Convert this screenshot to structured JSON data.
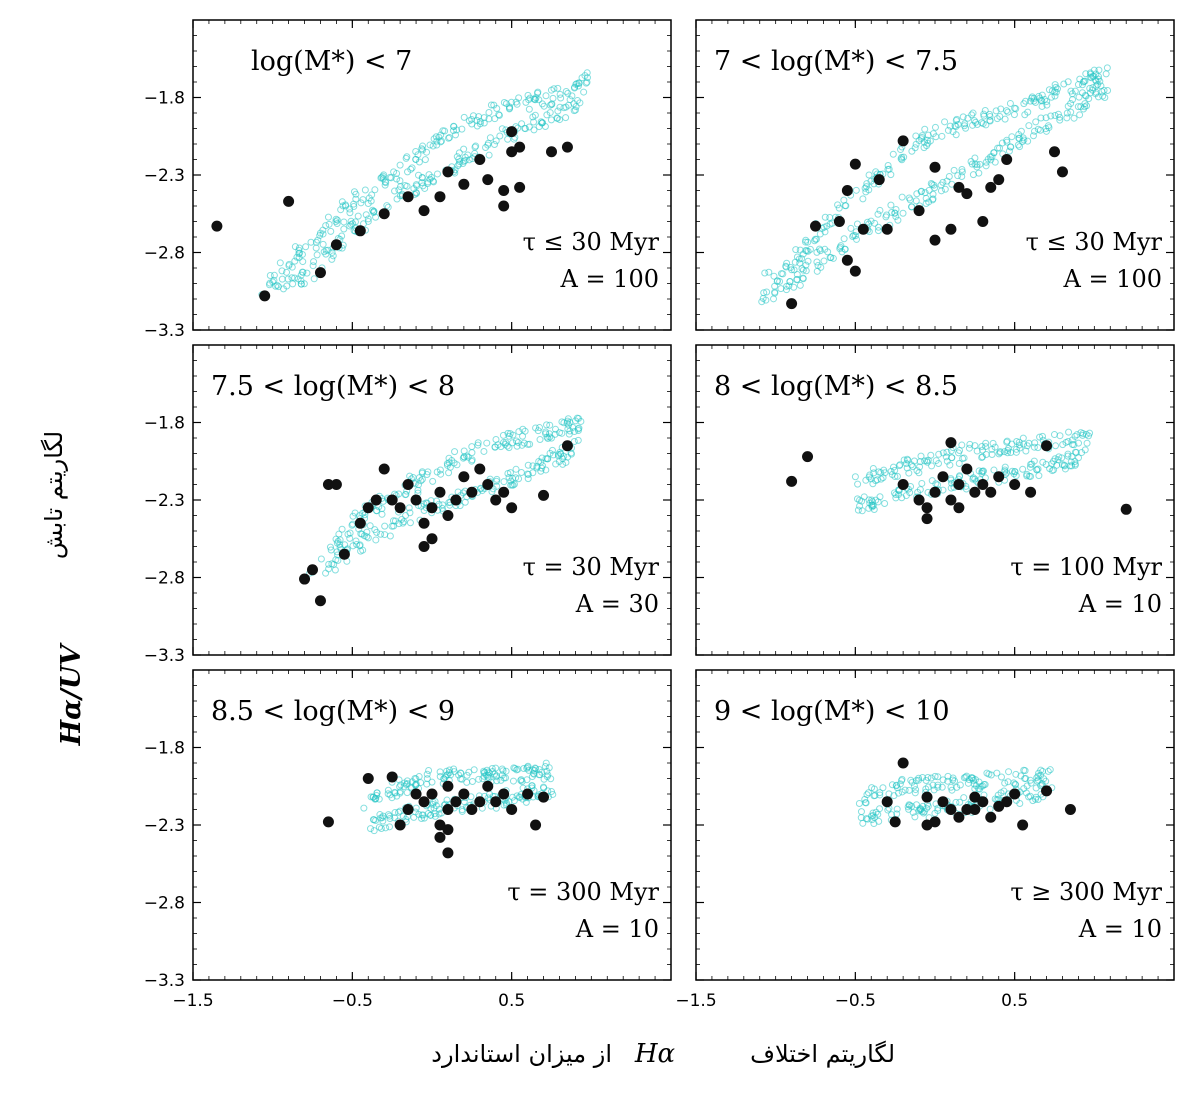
{
  "figure": {
    "xlabel": {
      "suffix": "لگاریتم اختلاف",
      "symbol": "Hα",
      "prefix": "از میزان استاندارد"
    },
    "ylabel": {
      "symbol": "Hα/UV",
      "text": "لگاریتم تابش"
    }
  },
  "chart_data": [
    {
      "type": "scatter",
      "title": "log(M*) < 7",
      "annotation": [
        "τ ≤ 30 Myr",
        "A = 100"
      ],
      "xlim": [
        -1.5,
        1.5
      ],
      "ylim": [
        -3.3,
        -1.3
      ],
      "xticks": [
        "−1.5",
        "−0.5",
        "0.5"
      ],
      "yticks": [
        "−1.8",
        "−2.3",
        "−2.8",
        "−3.3"
      ],
      "model_band": {
        "color": "#22c4c4",
        "tracks": [
          [
            [
              -1.05,
              -3.05
            ],
            [
              -0.8,
              -2.95
            ],
            [
              -0.55,
              -2.7
            ],
            [
              -0.3,
              -2.5
            ],
            [
              -0.05,
              -2.35
            ],
            [
              0.2,
              -2.2
            ],
            [
              0.45,
              -2.05
            ],
            [
              0.7,
              -1.95
            ],
            [
              0.95,
              -1.8
            ]
          ],
          [
            [
              -1.0,
              -2.95
            ],
            [
              -0.75,
              -2.75
            ],
            [
              -0.5,
              -2.5
            ],
            [
              -0.25,
              -2.3
            ],
            [
              0,
              -2.1
            ],
            [
              0.25,
              -1.95
            ],
            [
              0.5,
              -1.85
            ],
            [
              0.75,
              -1.8
            ],
            [
              1.0,
              -1.65
            ]
          ]
        ]
      },
      "points": [
        [
          -1.35,
          -2.63
        ],
        [
          -0.9,
          -2.47
        ],
        [
          -1.05,
          -3.08
        ],
        [
          -0.7,
          -2.93
        ],
        [
          -0.6,
          -2.75
        ],
        [
          -0.45,
          -2.66
        ],
        [
          -0.3,
          -2.55
        ],
        [
          -0.15,
          -2.44
        ],
        [
          -0.05,
          -2.53
        ],
        [
          0.05,
          -2.44
        ],
        [
          0.1,
          -2.28
        ],
        [
          0.2,
          -2.36
        ],
        [
          0.3,
          -2.2
        ],
        [
          0.35,
          -2.33
        ],
        [
          0.45,
          -2.4
        ],
        [
          0.5,
          -2.15
        ],
        [
          0.55,
          -2.12
        ],
        [
          0.5,
          -2.02
        ],
        [
          0.55,
          -2.38
        ],
        [
          0.45,
          -2.5
        ],
        [
          0.75,
          -2.15
        ],
        [
          0.85,
          -2.12
        ]
      ]
    },
    {
      "type": "scatter",
      "title": "7 < log(M*) < 7.5",
      "annotation": [
        "τ ≤ 30 Myr",
        "A = 100"
      ],
      "xlim": [
        -1.5,
        1.5
      ],
      "ylim": [
        -3.3,
        -1.3
      ],
      "xticks": [
        "−1.5",
        "−0.5",
        "0.5"
      ],
      "yticks": [],
      "model_band": {
        "color": "#22c4c4",
        "tracks": [
          [
            [
              -1.1,
              -3.1
            ],
            [
              -0.85,
              -2.95
            ],
            [
              -0.6,
              -2.75
            ],
            [
              -0.35,
              -2.6
            ],
            [
              -0.1,
              -2.45
            ],
            [
              0.15,
              -2.3
            ],
            [
              0.4,
              -2.15
            ],
            [
              0.65,
              -2.0
            ],
            [
              0.9,
              -1.85
            ],
            [
              1.05,
              -1.75
            ]
          ],
          [
            [
              -1.05,
              -3.0
            ],
            [
              -0.8,
              -2.75
            ],
            [
              -0.55,
              -2.5
            ],
            [
              -0.3,
              -2.25
            ],
            [
              -0.05,
              -2.05
            ],
            [
              0.2,
              -1.95
            ],
            [
              0.45,
              -1.9
            ],
            [
              0.7,
              -1.8
            ],
            [
              0.95,
              -1.7
            ],
            [
              1.05,
              -1.65
            ]
          ]
        ]
      },
      "points": [
        [
          -0.9,
          -3.13
        ],
        [
          -0.75,
          -2.63
        ],
        [
          -0.6,
          -2.6
        ],
        [
          -0.5,
          -2.92
        ],
        [
          -0.55,
          -2.85
        ],
        [
          -0.45,
          -2.65
        ],
        [
          -0.3,
          -2.65
        ],
        [
          -0.55,
          -2.4
        ],
        [
          -0.5,
          -2.23
        ],
        [
          -0.35,
          -2.33
        ],
        [
          -0.2,
          -2.08
        ],
        [
          -0.1,
          -2.53
        ],
        [
          0,
          -2.25
        ],
        [
          0,
          -2.72
        ],
        [
          0.1,
          -2.65
        ],
        [
          0.15,
          -2.38
        ],
        [
          0.2,
          -2.42
        ],
        [
          0.3,
          -2.6
        ],
        [
          0.35,
          -2.38
        ],
        [
          0.4,
          -2.33
        ],
        [
          0.45,
          -2.2
        ],
        [
          0.75,
          -2.15
        ],
        [
          0.8,
          -2.28
        ]
      ]
    },
    {
      "type": "scatter",
      "title": "7.5 < log(M*) < 8",
      "annotation": [
        "τ = 30 Myr",
        "A = 30"
      ],
      "xlim": [
        -1.5,
        1.5
      ],
      "ylim": [
        -3.3,
        -1.3
      ],
      "xticks": [
        "−1.5",
        "−0.5",
        "0.5"
      ],
      "yticks": [
        "−1.8",
        "−2.3",
        "−2.8",
        "−3.3"
      ],
      "model_band": {
        "color": "#22c4c4",
        "tracks": [
          [
            [
              -0.75,
              -2.8
            ],
            [
              -0.5,
              -2.6
            ],
            [
              -0.25,
              -2.45
            ],
            [
              0,
              -2.35
            ],
            [
              0.25,
              -2.25
            ],
            [
              0.5,
              -2.15
            ],
            [
              0.75,
              -2.05
            ],
            [
              0.9,
              -1.95
            ]
          ],
          [
            [
              -0.7,
              -2.65
            ],
            [
              -0.45,
              -2.4
            ],
            [
              -0.2,
              -2.25
            ],
            [
              0.05,
              -2.1
            ],
            [
              0.3,
              -1.97
            ],
            [
              0.55,
              -1.9
            ],
            [
              0.8,
              -1.85
            ],
            [
              0.95,
              -1.8
            ]
          ]
        ]
      },
      "points": [
        [
          -0.8,
          -2.81
        ],
        [
          -0.75,
          -2.75
        ],
        [
          -0.7,
          -2.95
        ],
        [
          -0.65,
          -2.2
        ],
        [
          -0.6,
          -2.2
        ],
        [
          -0.55,
          -2.65
        ],
        [
          -0.45,
          -2.45
        ],
        [
          -0.4,
          -2.35
        ],
        [
          -0.35,
          -2.3
        ],
        [
          -0.3,
          -2.1
        ],
        [
          -0.25,
          -2.3
        ],
        [
          -0.2,
          -2.35
        ],
        [
          -0.15,
          -2.2
        ],
        [
          -0.1,
          -2.3
        ],
        [
          -0.05,
          -2.45
        ],
        [
          0,
          -2.35
        ],
        [
          0.05,
          -2.25
        ],
        [
          0.1,
          -2.4
        ],
        [
          0.15,
          -2.3
        ],
        [
          0.2,
          -2.15
        ],
        [
          0.25,
          -2.25
        ],
        [
          0.3,
          -2.1
        ],
        [
          0.35,
          -2.2
        ],
        [
          0.4,
          -2.3
        ],
        [
          0.45,
          -2.25
        ],
        [
          0.5,
          -2.35
        ],
        [
          0.7,
          -2.27
        ],
        [
          0.85,
          -1.95
        ],
        [
          -0.05,
          -2.6
        ],
        [
          0,
          -2.55
        ]
      ]
    },
    {
      "type": "scatter",
      "title": "8 < log(M*) < 8.5",
      "annotation": [
        "τ = 100 Myr",
        "A = 10"
      ],
      "xlim": [
        -1.5,
        1.5
      ],
      "ylim": [
        -3.3,
        -1.3
      ],
      "xticks": [
        "−1.5",
        "−0.5",
        "0.5"
      ],
      "yticks": [],
      "model_band": {
        "color": "#22c4c4",
        "tracks": [
          [
            [
              -0.5,
              -2.35
            ],
            [
              -0.25,
              -2.28
            ],
            [
              0,
              -2.22
            ],
            [
              0.25,
              -2.17
            ],
            [
              0.5,
              -2.12
            ],
            [
              0.75,
              -2.07
            ],
            [
              0.95,
              -2.02
            ]
          ],
          [
            [
              -0.5,
              -2.2
            ],
            [
              -0.25,
              -2.1
            ],
            [
              0,
              -2.05
            ],
            [
              0.25,
              -1.98
            ],
            [
              0.5,
              -1.95
            ],
            [
              0.75,
              -1.92
            ],
            [
              0.95,
              -1.9
            ]
          ]
        ]
      },
      "points": [
        [
          -0.9,
          -2.18
        ],
        [
          -0.8,
          -2.02
        ],
        [
          -0.2,
          -2.2
        ],
        [
          -0.1,
          -2.3
        ],
        [
          -0.05,
          -2.35
        ],
        [
          0,
          -2.25
        ],
        [
          0.05,
          -2.15
        ],
        [
          0.1,
          -2.3
        ],
        [
          0.15,
          -2.2
        ],
        [
          0.2,
          -2.1
        ],
        [
          0.25,
          -2.25
        ],
        [
          0.3,
          -2.2
        ],
        [
          0.35,
          -2.25
        ],
        [
          0.4,
          -2.15
        ],
        [
          0.5,
          -2.2
        ],
        [
          0.6,
          -2.25
        ],
        [
          0.7,
          -1.95
        ],
        [
          0.1,
          -1.93
        ],
        [
          0.15,
          -2.35
        ],
        [
          1.2,
          -2.36
        ],
        [
          -0.05,
          -2.42
        ]
      ]
    },
    {
      "type": "scatter",
      "title": "8.5 < log(M*) < 9",
      "annotation": [
        "τ = 300 Myr",
        "A = 10"
      ],
      "xlim": [
        -1.5,
        1.5
      ],
      "ylim": [
        -3.3,
        -1.3
      ],
      "xticks": [
        "−1.5",
        "−0.5",
        "0.5"
      ],
      "yticks": [
        "−1.8",
        "−2.3",
        "−2.8",
        "−3.3"
      ],
      "model_band": {
        "color": "#22c4c4",
        "tracks": [
          [
            [
              -0.4,
              -2.3
            ],
            [
              -0.2,
              -2.25
            ],
            [
              0,
              -2.2
            ],
            [
              0.2,
              -2.17
            ],
            [
              0.4,
              -2.14
            ],
            [
              0.6,
              -2.1
            ],
            [
              0.75,
              -2.07
            ]
          ],
          [
            [
              -0.4,
              -2.15
            ],
            [
              -0.2,
              -2.05
            ],
            [
              0,
              -2.0
            ],
            [
              0.2,
              -1.98
            ],
            [
              0.4,
              -1.98
            ],
            [
              0.6,
              -1.97
            ],
            [
              0.75,
              -1.95
            ]
          ]
        ]
      },
      "points": [
        [
          -0.65,
          -2.28
        ],
        [
          -0.4,
          -2.0
        ],
        [
          -0.25,
          -1.99
        ],
        [
          -0.2,
          -2.3
        ],
        [
          -0.15,
          -2.2
        ],
        [
          -0.1,
          -2.1
        ],
        [
          -0.05,
          -2.15
        ],
        [
          0,
          -2.1
        ],
        [
          0.05,
          -2.3
        ],
        [
          0.1,
          -2.2
        ],
        [
          0.1,
          -2.05
        ],
        [
          0.15,
          -2.15
        ],
        [
          0.2,
          -2.1
        ],
        [
          0.25,
          -2.2
        ],
        [
          0.3,
          -2.15
        ],
        [
          0.35,
          -2.05
        ],
        [
          0.4,
          -2.15
        ],
        [
          0.45,
          -2.1
        ],
        [
          0.5,
          -2.2
        ],
        [
          0.6,
          -2.1
        ],
        [
          0.65,
          -2.3
        ],
        [
          0.7,
          -2.12
        ],
        [
          0.1,
          -2.33
        ],
        [
          0.05,
          -2.38
        ],
        [
          0.1,
          -2.48
        ]
      ]
    },
    {
      "type": "scatter",
      "title": "9 < log(M*) < 10",
      "annotation": [
        "τ ≥ 300 Myr",
        "A = 10"
      ],
      "xlim": [
        -1.5,
        1.5
      ],
      "ylim": [
        -3.3,
        -1.3
      ],
      "xticks": [
        "−1.5",
        "−0.5",
        "0.5"
      ],
      "yticks": [],
      "model_band": {
        "color": "#22c4c4",
        "tracks": [
          [
            [
              -0.45,
              -2.25
            ],
            [
              -0.2,
              -2.22
            ],
            [
              0,
              -2.2
            ],
            [
              0.25,
              -2.17
            ],
            [
              0.5,
              -2.12
            ],
            [
              0.7,
              -2.08
            ]
          ],
          [
            [
              -0.45,
              -2.12
            ],
            [
              -0.2,
              -2.05
            ],
            [
              0,
              -2.03
            ],
            [
              0.25,
              -2.02
            ],
            [
              0.5,
              -2.0
            ],
            [
              0.7,
              -1.98
            ]
          ]
        ]
      },
      "points": [
        [
          -0.3,
          -2.15
        ],
        [
          -0.25,
          -2.28
        ],
        [
          -0.2,
          -1.9
        ],
        [
          -0.05,
          -2.12
        ],
        [
          0,
          -2.28
        ],
        [
          0.05,
          -2.15
        ],
        [
          0.1,
          -2.2
        ],
        [
          0.15,
          -2.25
        ],
        [
          0.2,
          -2.2
        ],
        [
          0.25,
          -2.12
        ],
        [
          0.3,
          -2.15
        ],
        [
          0.35,
          -2.25
        ],
        [
          0.4,
          -2.18
        ],
        [
          0.45,
          -2.15
        ],
        [
          0.5,
          -2.1
        ],
        [
          0.55,
          -2.3
        ],
        [
          0.7,
          -2.08
        ],
        [
          0.85,
          -2.2
        ],
        [
          -0.05,
          -2.3
        ],
        [
          0.25,
          -2.2
        ]
      ]
    }
  ]
}
